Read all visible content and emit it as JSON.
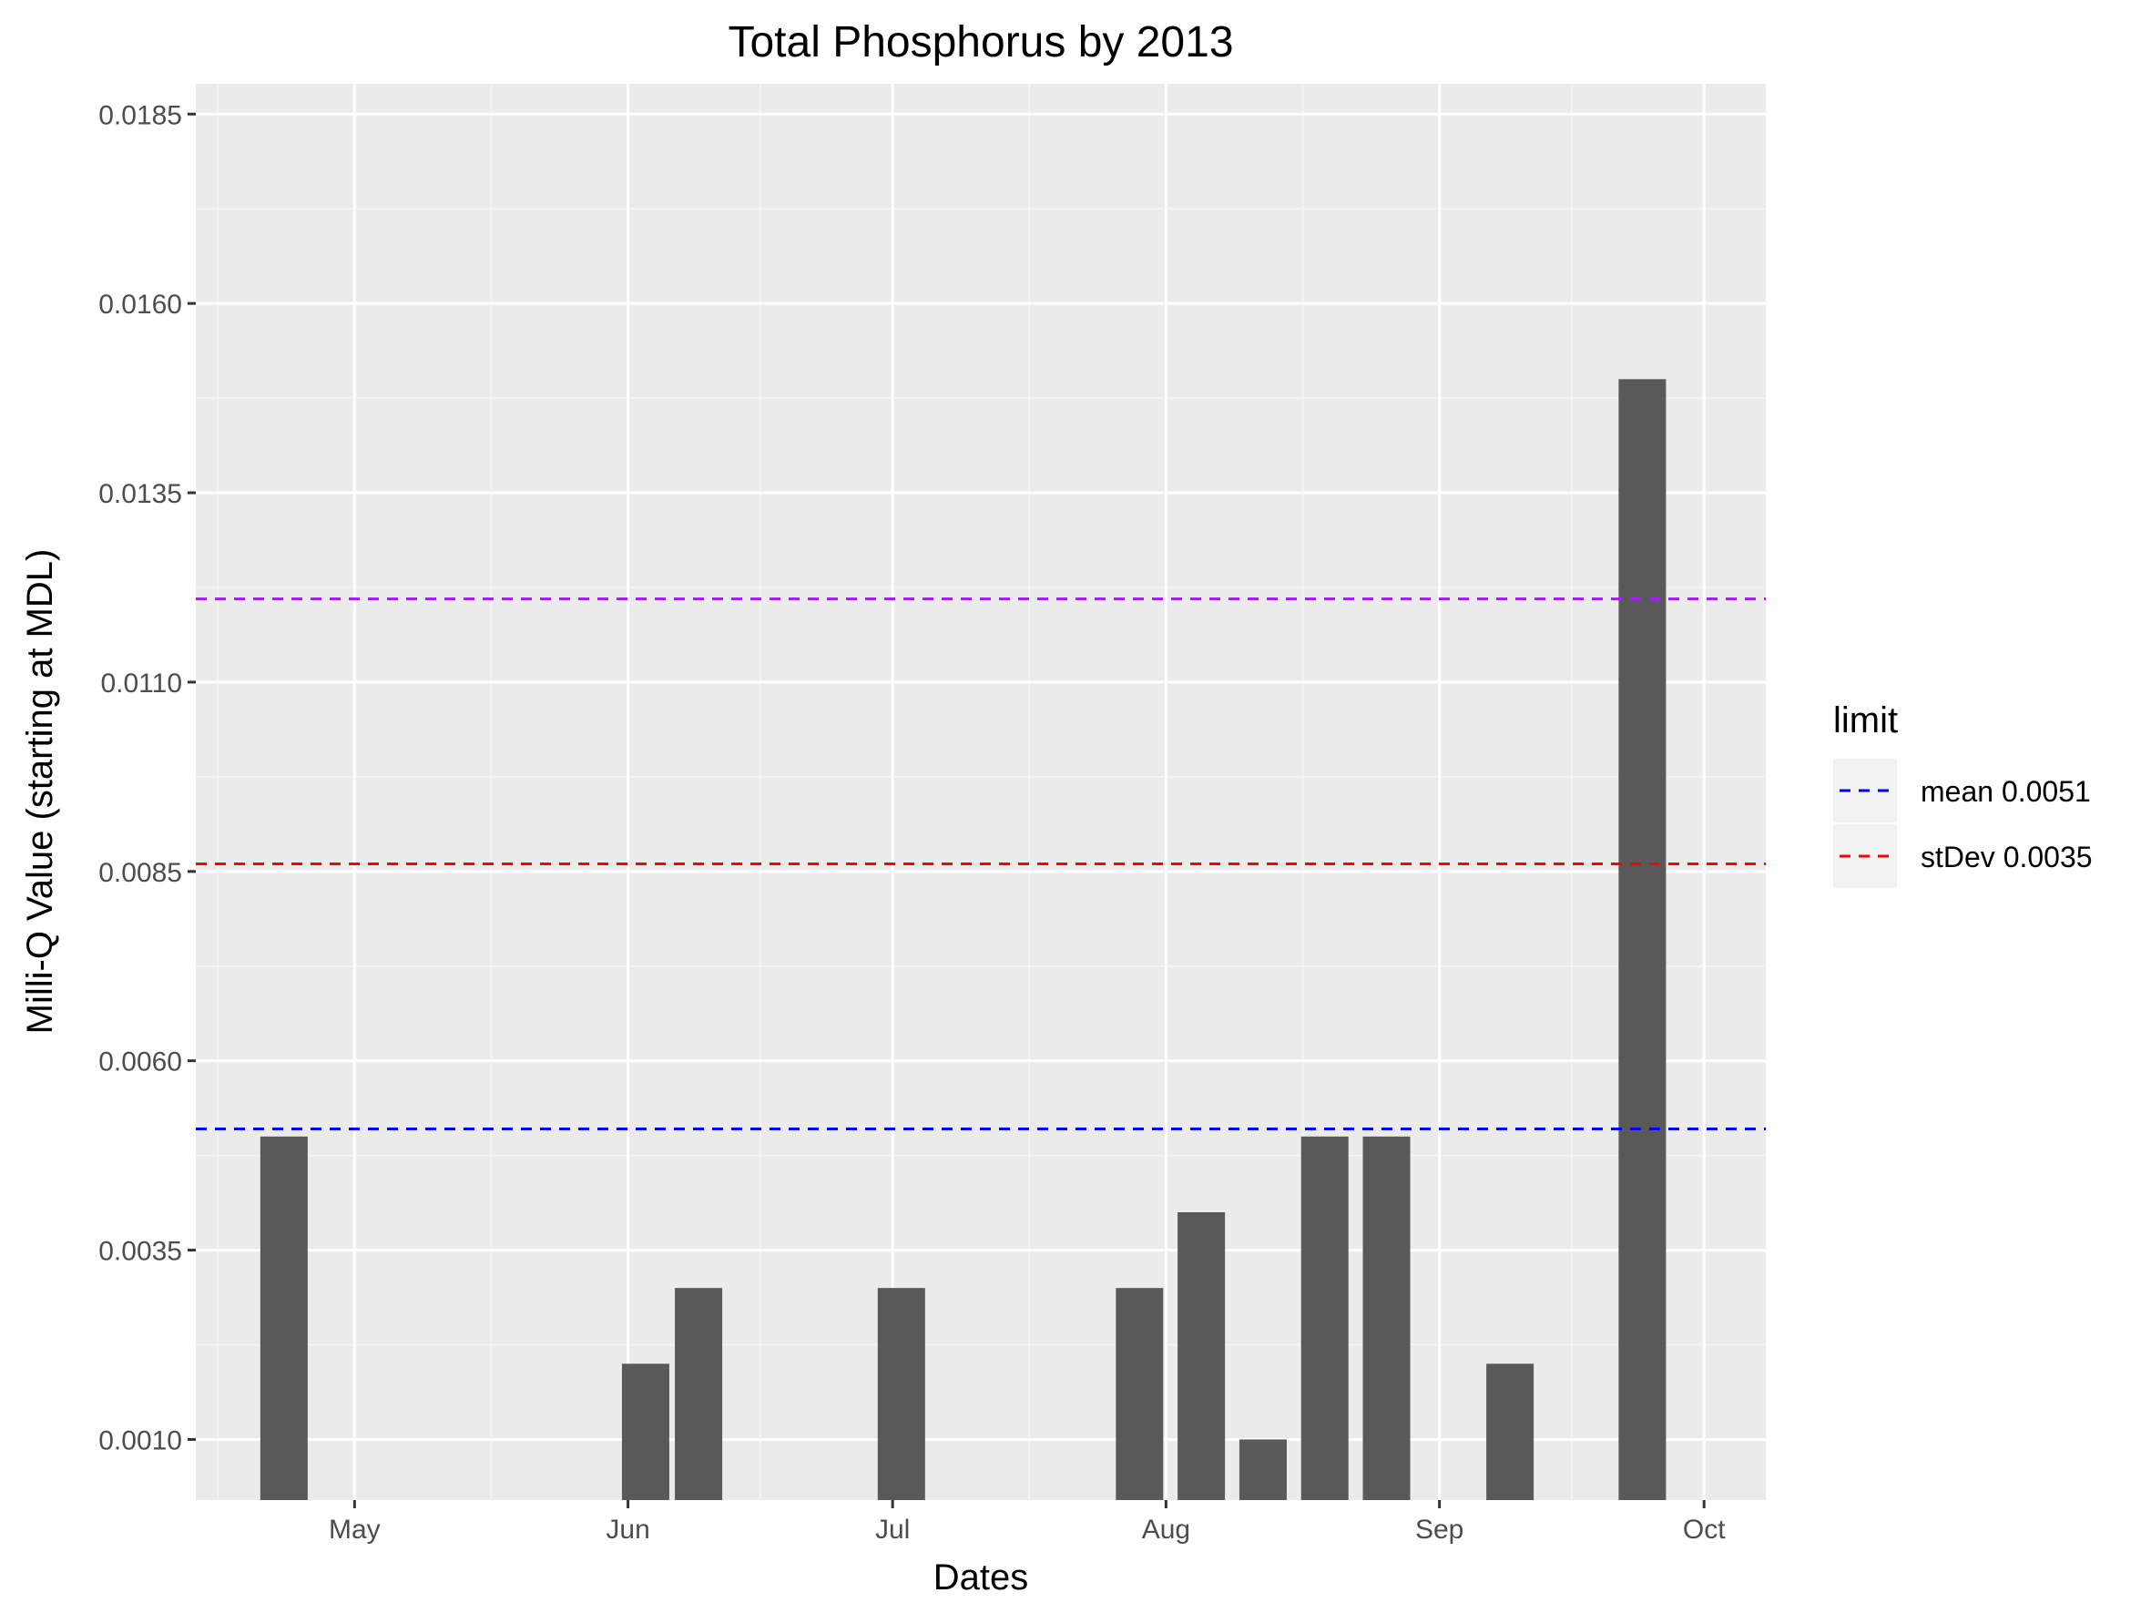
{
  "chart_data": {
    "type": "bar",
    "title": "Total Phosphorus by 2013",
    "xlabel": "Dates",
    "ylabel": "Milli-Q Value (starting at MDL)",
    "ylim": [
      0.0002,
      0.0189
    ],
    "yticks": [
      0.001,
      0.0035,
      0.006,
      0.0085,
      0.011,
      0.0135,
      0.016,
      0.0185
    ],
    "ytick_labels": [
      "0.0010",
      "0.0035",
      "0.0060",
      "0.0085",
      "0.0110",
      "0.0135",
      "0.0160",
      "0.0185"
    ],
    "xlim": [
      "2013-04-13",
      "2013-10-08"
    ],
    "xticks": [
      "2013-05-01",
      "2013-06-01",
      "2013-07-01",
      "2013-08-01",
      "2013-09-01",
      "2013-10-01"
    ],
    "xtick_labels": [
      "May",
      "Jun",
      "Jul",
      "Aug",
      "Sep",
      "Oct"
    ],
    "bar_baseline": 0.0002,
    "bars": [
      {
        "date": "2013-04-23",
        "value": 0.005
      },
      {
        "date": "2013-06-03",
        "value": 0.002
      },
      {
        "date": "2013-06-09",
        "value": 0.003
      },
      {
        "date": "2013-07-02",
        "value": 0.003
      },
      {
        "date": "2013-07-29",
        "value": 0.003
      },
      {
        "date": "2013-08-05",
        "value": 0.004
      },
      {
        "date": "2013-08-12",
        "value": 0.001
      },
      {
        "date": "2013-08-19",
        "value": 0.005
      },
      {
        "date": "2013-08-26",
        "value": 0.005
      },
      {
        "date": "2013-09-09",
        "value": 0.002
      },
      {
        "date": "2013-09-24",
        "value": 0.015
      }
    ],
    "reference_lines": [
      {
        "label": "mean 0.0051",
        "value": 0.0051,
        "color": "#0000ff",
        "in_legend": true
      },
      {
        "label": "stDev 0.0035",
        "value": 0.0086,
        "color": "#ff0000",
        "in_legend": true
      },
      {
        "label": "",
        "value": 0.0121,
        "color": "#a020f0",
        "in_legend": false
      }
    ],
    "legend": {
      "title": "limit",
      "position": "right"
    },
    "bar_color": "#595959",
    "panel_color": "#ebebeb",
    "grid": true
  }
}
